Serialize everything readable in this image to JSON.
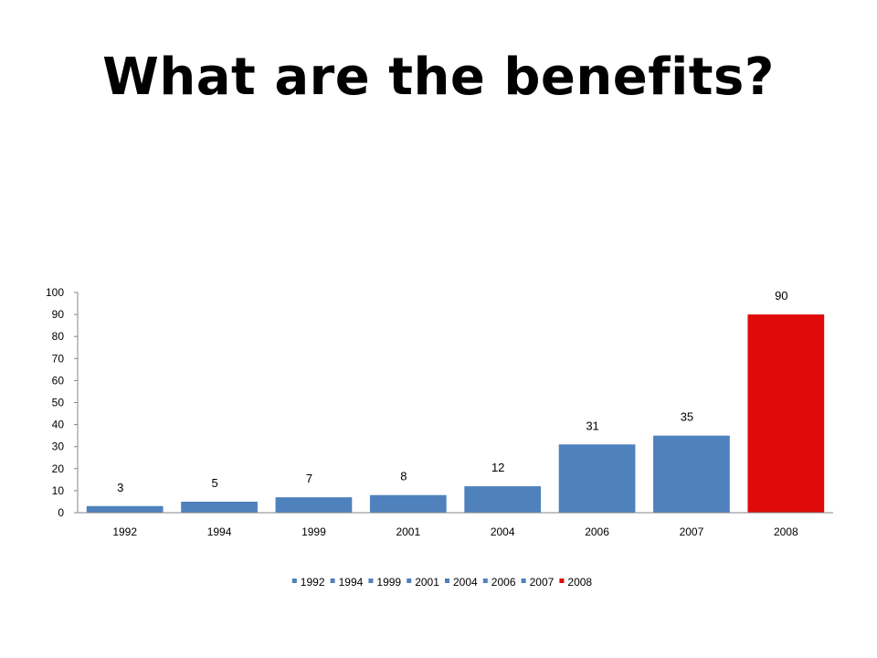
{
  "slide": {
    "title": "What are the benefits?"
  },
  "chart_data": {
    "type": "bar",
    "categories": [
      "1992",
      "1994",
      "1999",
      "2001",
      "2004",
      "2006",
      "2007",
      "2008"
    ],
    "values": [
      3,
      5,
      7,
      8,
      12,
      31,
      35,
      90
    ],
    "colors": [
      "#4F81BD",
      "#4F81BD",
      "#4F81BD",
      "#4F81BD",
      "#4F81BD",
      "#4F81BD",
      "#4F81BD",
      "#E00A0A"
    ],
    "data_labels": true,
    "ylim": [
      0,
      100
    ],
    "yticks": [
      0,
      10,
      20,
      30,
      40,
      50,
      60,
      70,
      80,
      90,
      100
    ],
    "legend": {
      "position": "bottom",
      "entries": [
        "1992",
        "1994",
        "1999",
        "2001",
        "2004",
        "2006",
        "2007",
        "2008"
      ]
    },
    "grid": false,
    "title": "",
    "xlabel": "",
    "ylabel": ""
  }
}
